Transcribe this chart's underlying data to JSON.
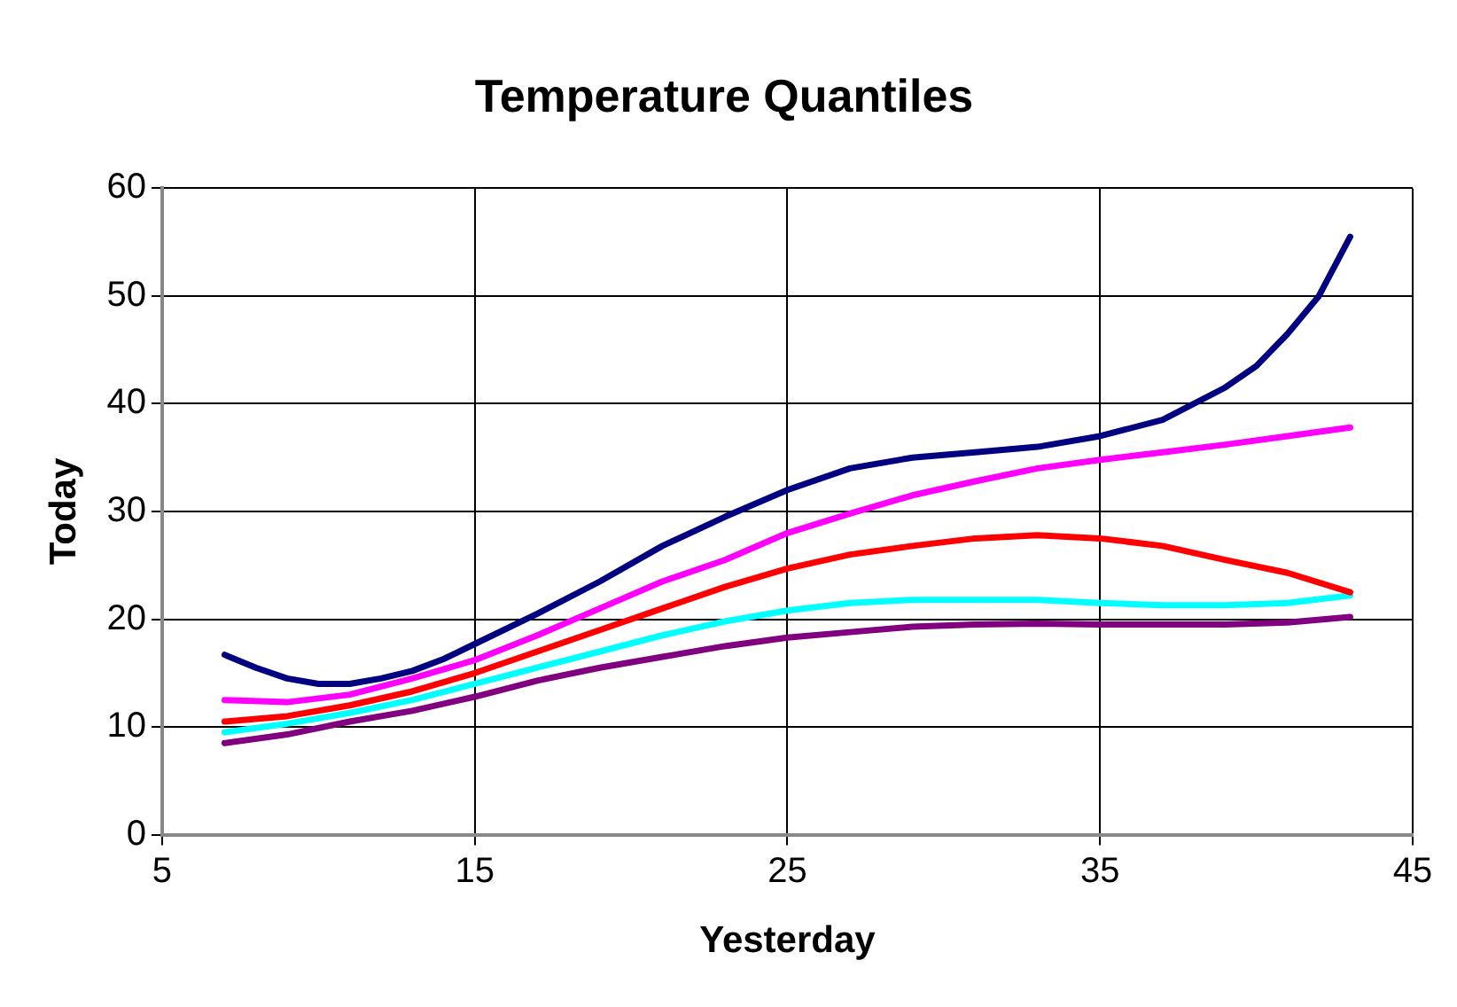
{
  "chart_data": {
    "type": "line",
    "title": "Temperature Quantiles",
    "xlabel": "Yesterday",
    "ylabel": "Today",
    "xlim": [
      5,
      45
    ],
    "xticks": [
      5,
      15,
      25,
      35,
      45
    ],
    "ylim": [
      0,
      60
    ],
    "yticks": [
      0,
      10,
      20,
      30,
      40,
      50,
      60
    ],
    "grid": true,
    "marker": "none",
    "line_style": "solid",
    "series": [
      {
        "color": "#000080",
        "x": [
          7,
          8,
          9,
          10,
          11,
          12,
          13,
          14,
          15,
          17,
          19,
          21,
          23,
          25,
          27,
          29,
          31,
          33,
          35,
          37,
          39,
          40,
          41,
          42,
          43
        ],
        "values": [
          16.7,
          15.5,
          14.5,
          14,
          14,
          14.5,
          15.2,
          16.3,
          17.7,
          20.5,
          23.5,
          26.8,
          29.5,
          32,
          34,
          35,
          35.5,
          36,
          37,
          38.5,
          41.5,
          43.5,
          46.5,
          50,
          55.5
        ]
      },
      {
        "color": "#ff00ff",
        "x": [
          7,
          9,
          11,
          13,
          15,
          17,
          19,
          21,
          23,
          25,
          27,
          29,
          31,
          33,
          35,
          37,
          39,
          41,
          43
        ],
        "values": [
          12.5,
          12.3,
          13,
          14.5,
          16.2,
          18.5,
          21,
          23.5,
          25.5,
          28,
          29.8,
          31.5,
          32.8,
          34,
          34.8,
          35.5,
          36.2,
          37,
          37.8
        ]
      },
      {
        "color": "#ff0000",
        "x": [
          7,
          9,
          11,
          13,
          15,
          17,
          19,
          21,
          23,
          25,
          27,
          29,
          31,
          33,
          35,
          37,
          39,
          41,
          43
        ],
        "values": [
          10.5,
          11,
          12,
          13.3,
          15,
          17,
          19,
          21,
          23,
          24.7,
          26,
          26.8,
          27.5,
          27.8,
          27.5,
          26.8,
          25.5,
          24.3,
          22.5
        ]
      },
      {
        "color": "#00ffff",
        "x": [
          7,
          9,
          11,
          13,
          15,
          17,
          19,
          21,
          23,
          25,
          27,
          29,
          31,
          33,
          35,
          37,
          39,
          41,
          43
        ],
        "values": [
          9.5,
          10.3,
          11.3,
          12.5,
          14,
          15.5,
          17,
          18.5,
          19.8,
          20.8,
          21.5,
          21.8,
          21.8,
          21.8,
          21.5,
          21.3,
          21.3,
          21.5,
          22.2
        ]
      },
      {
        "color": "#800080",
        "x": [
          7,
          9,
          11,
          13,
          15,
          17,
          19,
          21,
          23,
          25,
          27,
          29,
          31,
          33,
          35,
          37,
          39,
          41,
          43
        ],
        "values": [
          8.5,
          9.3,
          10.5,
          11.5,
          12.8,
          14.3,
          15.5,
          16.5,
          17.5,
          18.3,
          18.8,
          19.3,
          19.5,
          19.6,
          19.5,
          19.5,
          19.5,
          19.7,
          20.2
        ]
      }
    ]
  }
}
